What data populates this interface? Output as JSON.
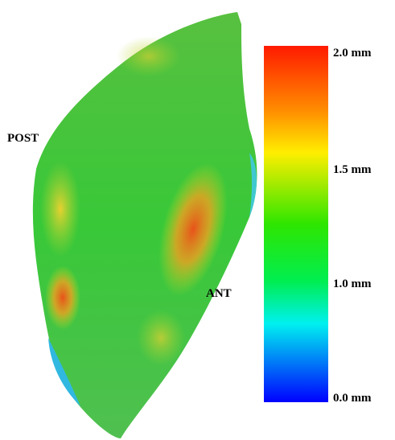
{
  "labels": {
    "post": "POST",
    "ant": "ANT"
  },
  "colorbar": {
    "ticks": [
      "2.0 mm",
      "1.5 mm",
      "1.0 mm",
      "0.0 mm"
    ]
  }
}
